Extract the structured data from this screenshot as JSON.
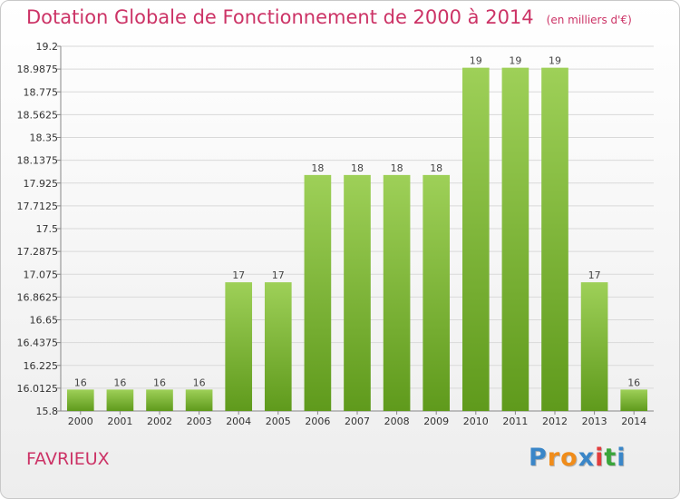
{
  "header": {
    "title": "Dotation Globale de Fonctionnement de 2000 à 2014",
    "unit": "(en milliers d'€)"
  },
  "footer": {
    "commune": "FAVRIEUX",
    "logo_letters": [
      "P",
      "r",
      "o",
      "x",
      "i",
      "t",
      "i"
    ]
  },
  "colors": {
    "title": "#cc3366",
    "bar_top": "#9ed058",
    "bar_bottom": "#5f9a1c",
    "grid": "#d9d9d9",
    "logo": [
      "#3a86c8",
      "#f08c1a",
      "#f08c1a",
      "#3a86c8",
      "#e23c3c",
      "#3aa53a",
      "#3a86c8"
    ]
  },
  "chart_data": {
    "type": "bar",
    "title": "Dotation Globale de Fonctionnement de 2000 à 2014",
    "subtitle": "(en milliers d'€)",
    "xlabel": "",
    "ylabel": "",
    "categories": [
      "2000",
      "2001",
      "2002",
      "2003",
      "2004",
      "2005",
      "2006",
      "2007",
      "2008",
      "2009",
      "2010",
      "2011",
      "2012",
      "2013",
      "2014"
    ],
    "values": [
      16,
      16,
      16,
      16,
      17,
      17,
      18,
      18,
      18,
      18,
      19,
      19,
      19,
      17,
      16
    ],
    "data_labels": [
      "16",
      "16",
      "16",
      "16",
      "17",
      "17",
      "18",
      "18",
      "18",
      "18",
      "19",
      "19",
      "19",
      "17",
      "16"
    ],
    "ylim": [
      15.8,
      19.2
    ],
    "yticks": [
      "15.8",
      "16.0125",
      "16.225",
      "16.4375",
      "16.65",
      "16.8625",
      "17.075",
      "17.2875",
      "17.5",
      "17.7125",
      "17.925",
      "18.1375",
      "18.35",
      "18.5625",
      "18.775",
      "18.9875",
      "19.2"
    ],
    "grid": true,
    "legend": "none"
  }
}
